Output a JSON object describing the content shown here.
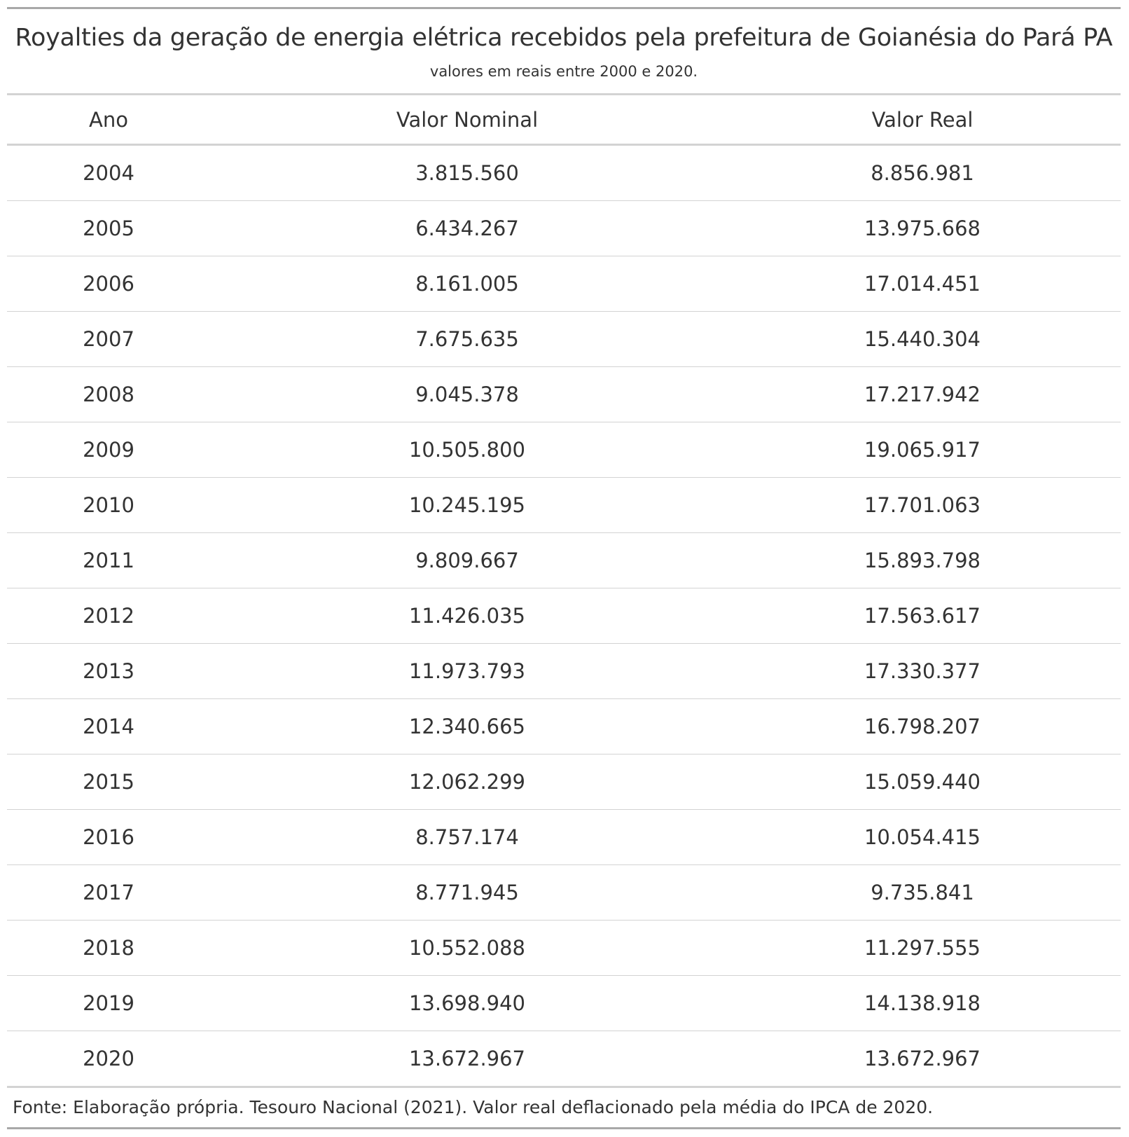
{
  "header": {
    "title": "Royalties da geração de energia elétrica recebidos pela prefeitura de Goianésia do Pará PA",
    "subtitle": "valores em reais entre 2000 e 2020."
  },
  "table": {
    "columns": [
      "Ano",
      "Valor Nominal",
      "Valor Real"
    ],
    "rows": [
      [
        "2004",
        "3.815.560",
        "8.856.981"
      ],
      [
        "2005",
        "6.434.267",
        "13.975.668"
      ],
      [
        "2006",
        "8.161.005",
        "17.014.451"
      ],
      [
        "2007",
        "7.675.635",
        "15.440.304"
      ],
      [
        "2008",
        "9.045.378",
        "17.217.942"
      ],
      [
        "2009",
        "10.505.800",
        "19.065.917"
      ],
      [
        "2010",
        "10.245.195",
        "17.701.063"
      ],
      [
        "2011",
        "9.809.667",
        "15.893.798"
      ],
      [
        "2012",
        "11.426.035",
        "17.563.617"
      ],
      [
        "2013",
        "11.973.793",
        "17.330.377"
      ],
      [
        "2014",
        "12.340.665",
        "16.798.207"
      ],
      [
        "2015",
        "12.062.299",
        "15.059.440"
      ],
      [
        "2016",
        "8.757.174",
        "10.054.415"
      ],
      [
        "2017",
        "8.771.945",
        "9.735.841"
      ],
      [
        "2018",
        "10.552.088",
        "11.297.555"
      ],
      [
        "2019",
        "13.698.940",
        "14.138.918"
      ],
      [
        "2020",
        "13.672.967",
        "13.672.967"
      ]
    ]
  },
  "footer": {
    "source": "Fonte: Elaboração própria. Tesouro Nacional (2021). Valor real deflacionado pela média do IPCA de 2020."
  }
}
